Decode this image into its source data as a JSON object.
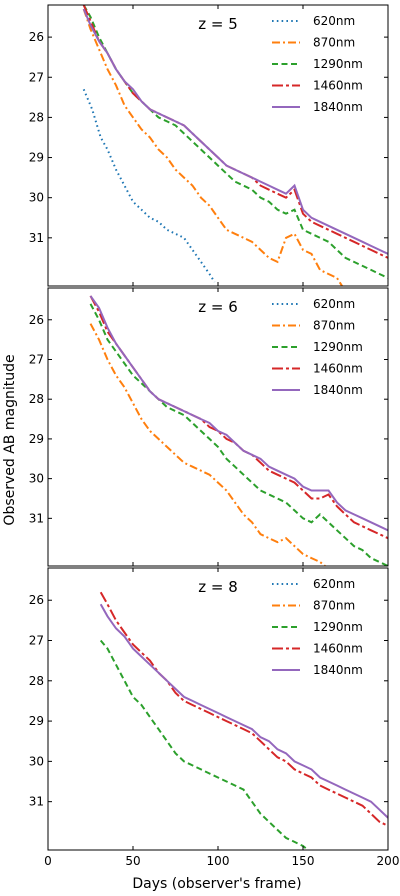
{
  "chart_data": {
    "type": "line",
    "shared_xlabel": "Days (observer's frame)",
    "shared_ylabel": "Observed AB magnitude",
    "xlim": [
      0,
      200
    ],
    "xticks": [
      0,
      50,
      100,
      150,
      200
    ],
    "ylim": [
      25.2,
      32.2
    ],
    "yticks": [
      26,
      27,
      28,
      29,
      30,
      31
    ],
    "y_inverted": true,
    "styles": {
      "620nm": {
        "color": "#1f77b4",
        "dash": "dotted"
      },
      "870nm": {
        "color": "#ff7f0e",
        "dash": "dashdot"
      },
      "1290nm": {
        "color": "#2ca02c",
        "dash": "dashed"
      },
      "1460nm": {
        "color": "#d62728",
        "dash": "longdashdot"
      },
      "1840nm": {
        "color": "#9467bd",
        "dash": "solid"
      }
    },
    "panels": [
      {
        "label": "z = 5",
        "legend": [
          "620nm",
          "870nm",
          "1290nm",
          "1460nm",
          "1840nm"
        ],
        "series": [
          {
            "name": "620nm",
            "x": [
              21,
              26,
              31,
              35,
              40,
              45,
              50,
              55,
              60,
              65,
              70,
              75,
              80,
              85,
              90,
              95,
              98
            ],
            "y": [
              27.3,
              27.8,
              28.5,
              28.8,
              29.3,
              29.7,
              30.1,
              30.3,
              30.5,
              30.6,
              30.8,
              30.9,
              31.0,
              31.3,
              31.6,
              31.9,
              32.1
            ]
          },
          {
            "name": "870nm",
            "x": [
              21,
              25,
              30,
              35,
              40,
              45,
              50,
              55,
              60,
              65,
              70,
              75,
              80,
              85,
              90,
              95,
              100,
              105,
              110,
              115,
              120,
              125,
              130,
              135,
              140,
              145,
              150,
              155,
              160,
              165,
              170,
              173
            ],
            "y": [
              25.3,
              25.8,
              26.3,
              26.8,
              27.2,
              27.7,
              28.0,
              28.3,
              28.5,
              28.8,
              29.0,
              29.3,
              29.5,
              29.7,
              30.0,
              30.2,
              30.5,
              30.8,
              30.9,
              31.0,
              31.1,
              31.3,
              31.5,
              31.6,
              31.0,
              30.9,
              31.3,
              31.4,
              31.8,
              31.9,
              32.0,
              32.2
            ]
          },
          {
            "name": "1290nm",
            "x": [
              21,
              25,
              30,
              35,
              40,
              45,
              50,
              55,
              60,
              65,
              70,
              75,
              80,
              85,
              90,
              95,
              100,
              105,
              110,
              115,
              120,
              125,
              130,
              135,
              140,
              145,
              150,
              155,
              160,
              165,
              170,
              175,
              180,
              185,
              190,
              195,
              200
            ],
            "y": [
              25.2,
              25.5,
              26.0,
              26.4,
              26.8,
              27.1,
              27.4,
              27.6,
              27.8,
              28.0,
              28.1,
              28.2,
              28.4,
              28.6,
              28.8,
              29.0,
              29.2,
              29.4,
              29.6,
              29.7,
              29.8,
              30.0,
              30.1,
              30.3,
              30.4,
              30.3,
              30.8,
              30.9,
              31.0,
              31.1,
              31.3,
              31.5,
              31.6,
              31.7,
              31.8,
              31.9,
              32.0
            ]
          },
          {
            "name": "1460nm",
            "x": [
              21,
              25,
              30,
              35,
              40,
              45,
              50,
              55,
              60,
              65,
              70,
              75,
              80,
              85,
              90,
              95,
              100,
              105,
              110,
              115,
              120,
              125,
              130,
              135,
              140,
              145,
              150,
              155,
              160,
              165,
              170,
              175,
              180,
              185,
              190,
              195,
              200
            ],
            "y": [
              25.2,
              25.6,
              26.1,
              26.4,
              26.8,
              27.1,
              27.4,
              27.6,
              27.8,
              27.9,
              28.0,
              28.1,
              28.2,
              28.4,
              28.6,
              28.8,
              29.0,
              29.2,
              29.3,
              29.4,
              29.5,
              29.7,
              29.8,
              29.9,
              30.0,
              29.8,
              30.4,
              30.6,
              30.7,
              30.8,
              30.9,
              31.0,
              31.1,
              31.2,
              31.3,
              31.4,
              31.5
            ]
          },
          {
            "name": "1840nm",
            "x": [
              21,
              25,
              30,
              35,
              40,
              45,
              50,
              55,
              60,
              65,
              70,
              75,
              80,
              85,
              90,
              95,
              100,
              105,
              110,
              115,
              120,
              125,
              130,
              135,
              140,
              145,
              150,
              155,
              160,
              165,
              170,
              175,
              180,
              185,
              190,
              195,
              200
            ],
            "y": [
              25.3,
              25.7,
              26.1,
              26.4,
              26.8,
              27.1,
              27.3,
              27.6,
              27.8,
              27.9,
              28.0,
              28.1,
              28.2,
              28.4,
              28.6,
              28.8,
              29.0,
              29.2,
              29.3,
              29.4,
              29.5,
              29.6,
              29.7,
              29.8,
              29.9,
              29.7,
              30.3,
              30.5,
              30.6,
              30.7,
              30.8,
              30.9,
              31.0,
              31.1,
              31.2,
              31.3,
              31.4
            ]
          }
        ]
      },
      {
        "label": "z = 6",
        "legend": [
          "620nm",
          "870nm",
          "1290nm",
          "1460nm",
          "1840nm"
        ],
        "series": [
          {
            "name": "870nm",
            "x": [
              25,
              30,
              35,
              40,
              45,
              50,
              55,
              60,
              65,
              70,
              75,
              80,
              85,
              90,
              95,
              100,
              105,
              110,
              115,
              120,
              125,
              130,
              135,
              140,
              145,
              150,
              155,
              160,
              163
            ],
            "y": [
              26.1,
              26.5,
              27.0,
              27.4,
              27.7,
              28.1,
              28.5,
              28.8,
              29.0,
              29.2,
              29.4,
              29.6,
              29.7,
              29.8,
              29.9,
              30.1,
              30.3,
              30.6,
              30.9,
              31.1,
              31.4,
              31.5,
              31.6,
              31.5,
              31.7,
              31.9,
              32.0,
              32.1,
              32.2
            ]
          },
          {
            "name": "1290nm",
            "x": [
              25,
              30,
              35,
              40,
              45,
              50,
              55,
              60,
              65,
              70,
              75,
              80,
              85,
              90,
              95,
              100,
              105,
              110,
              115,
              120,
              125,
              130,
              135,
              140,
              145,
              150,
              155,
              160,
              165,
              170,
              175,
              180,
              185,
              190,
              195,
              200
            ],
            "y": [
              25.6,
              26.0,
              26.5,
              26.8,
              27.1,
              27.4,
              27.6,
              27.8,
              28.0,
              28.2,
              28.3,
              28.4,
              28.6,
              28.8,
              29.0,
              29.2,
              29.5,
              29.7,
              29.9,
              30.1,
              30.3,
              30.4,
              30.5,
              30.6,
              30.8,
              31.0,
              31.1,
              30.9,
              31.1,
              31.3,
              31.5,
              31.7,
              31.8,
              32.0,
              32.1,
              32.2
            ]
          },
          {
            "name": "1460nm",
            "x": [
              25,
              30,
              35,
              40,
              45,
              50,
              55,
              60,
              65,
              70,
              75,
              80,
              85,
              90,
              95,
              100,
              105,
              110,
              115,
              120,
              125,
              130,
              135,
              140,
              145,
              150,
              155,
              160,
              165,
              170,
              175,
              180,
              185,
              190,
              195,
              200
            ],
            "y": [
              25.4,
              25.8,
              26.3,
              26.6,
              26.9,
              27.2,
              27.5,
              27.8,
              28.0,
              28.1,
              28.2,
              28.3,
              28.4,
              28.5,
              28.7,
              28.8,
              29.0,
              29.1,
              29.3,
              29.4,
              29.6,
              29.8,
              29.9,
              30.0,
              30.1,
              30.3,
              30.5,
              30.5,
              30.4,
              30.7,
              30.9,
              31.1,
              31.2,
              31.3,
              31.4,
              31.5
            ]
          },
          {
            "name": "1840nm",
            "x": [
              25,
              30,
              35,
              40,
              45,
              50,
              55,
              60,
              65,
              70,
              75,
              80,
              85,
              90,
              95,
              100,
              105,
              110,
              115,
              120,
              125,
              130,
              135,
              140,
              145,
              150,
              155,
              160,
              165,
              170,
              175,
              180,
              185,
              190,
              195,
              200
            ],
            "y": [
              25.4,
              25.7,
              26.2,
              26.6,
              26.9,
              27.2,
              27.5,
              27.8,
              28.0,
              28.1,
              28.2,
              28.3,
              28.4,
              28.5,
              28.6,
              28.8,
              28.9,
              29.1,
              29.3,
              29.4,
              29.5,
              29.7,
              29.8,
              29.9,
              30.0,
              30.2,
              30.3,
              30.3,
              30.3,
              30.6,
              30.8,
              30.9,
              31.0,
              31.1,
              31.2,
              31.3
            ]
          }
        ]
      },
      {
        "label": "z = 8",
        "legend": [
          "620nm",
          "870nm",
          "1290nm",
          "1460nm",
          "1840nm"
        ],
        "series": [
          {
            "name": "1290nm",
            "x": [
              31,
              35,
              40,
              45,
              50,
              55,
              60,
              65,
              70,
              75,
              80,
              85,
              90,
              95,
              100,
              105,
              110,
              115,
              120,
              125,
              130,
              135,
              140,
              145,
              150,
              153
            ],
            "y": [
              27.0,
              27.2,
              27.6,
              28.0,
              28.4,
              28.6,
              28.9,
              29.2,
              29.5,
              29.8,
              30.0,
              30.1,
              30.2,
              30.3,
              30.4,
              30.5,
              30.6,
              30.7,
              31.0,
              31.3,
              31.5,
              31.7,
              31.9,
              32.0,
              32.1,
              32.2
            ]
          },
          {
            "name": "1460nm",
            "x": [
              31,
              35,
              40,
              45,
              50,
              55,
              60,
              65,
              70,
              75,
              80,
              85,
              90,
              95,
              100,
              105,
              110,
              115,
              120,
              125,
              130,
              135,
              140,
              145,
              150,
              155,
              160,
              165,
              170,
              175,
              180,
              185,
              190,
              195,
              200
            ],
            "y": [
              25.8,
              26.1,
              26.5,
              26.8,
              27.1,
              27.3,
              27.5,
              27.8,
              28.0,
              28.3,
              28.5,
              28.6,
              28.7,
              28.8,
              28.9,
              29.0,
              29.1,
              29.2,
              29.3,
              29.5,
              29.7,
              29.9,
              30.0,
              30.2,
              30.3,
              30.4,
              30.6,
              30.7,
              30.8,
              30.9,
              31.0,
              31.1,
              31.3,
              31.5,
              31.6
            ]
          },
          {
            "name": "1840nm",
            "x": [
              31,
              35,
              40,
              45,
              50,
              55,
              60,
              65,
              70,
              75,
              80,
              85,
              90,
              95,
              100,
              105,
              110,
              115,
              120,
              125,
              130,
              135,
              140,
              145,
              150,
              155,
              160,
              165,
              170,
              175,
              180,
              185,
              190,
              195,
              200
            ],
            "y": [
              26.1,
              26.4,
              26.7,
              26.9,
              27.2,
              27.4,
              27.6,
              27.8,
              28.0,
              28.2,
              28.4,
              28.5,
              28.6,
              28.7,
              28.8,
              28.9,
              29.0,
              29.1,
              29.2,
              29.4,
              29.5,
              29.7,
              29.8,
              30.0,
              30.1,
              30.2,
              30.4,
              30.5,
              30.6,
              30.7,
              30.8,
              30.9,
              31.0,
              31.2,
              31.4
            ]
          }
        ]
      }
    ]
  }
}
